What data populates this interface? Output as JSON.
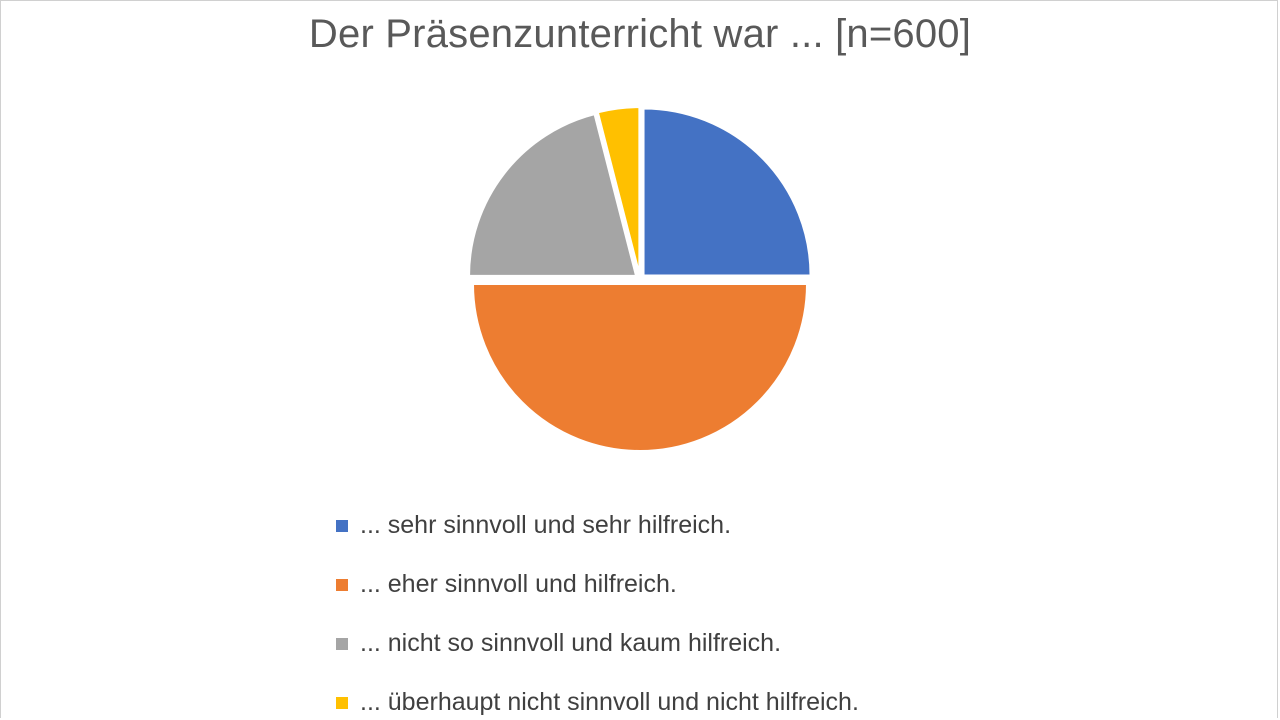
{
  "chart_data": {
    "type": "pie",
    "title": "Der Präsenzunterricht war ... [n=600]",
    "categories": [
      "... sehr sinnvoll und sehr hilfreich.",
      "... eher sinnvoll und hilfreich.",
      "... nicht so sinnvoll und kaum hilfreich.",
      "... überhaupt nicht sinnvoll und nicht hilfreich."
    ],
    "values": [
      25,
      50,
      21,
      4
    ],
    "colors": [
      "#4472C4",
      "#ED7D31",
      "#A5A5A5",
      "#FFC000"
    ],
    "legend_position": "bottom",
    "start_angle": "12 o'clock",
    "direction": "clockwise",
    "exploded": true
  }
}
